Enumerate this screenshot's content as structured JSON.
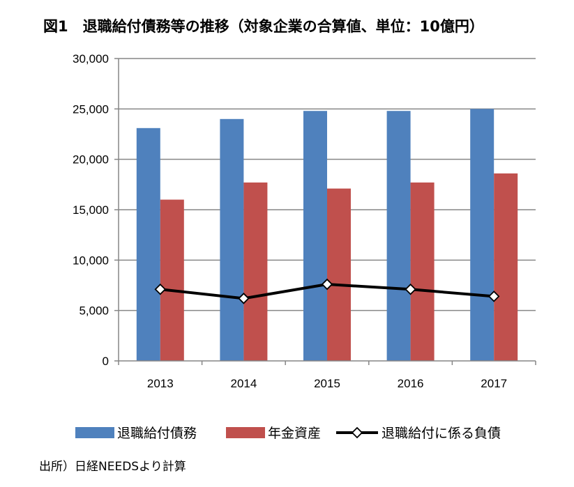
{
  "chart_data": {
    "type": "bar",
    "title": "図1　退職給付債務等の推移（対象企業の合算値、単位：10億円）",
    "categories": [
      "2013",
      "2014",
      "2015",
      "2016",
      "2017"
    ],
    "series": [
      {
        "name": "退職給付債務",
        "type": "bar",
        "color": "#4F81BD",
        "values": [
          23100,
          24000,
          24800,
          24800,
          25000
        ]
      },
      {
        "name": "年金資産",
        "type": "bar",
        "color": "#C0504D",
        "values": [
          16000,
          17700,
          17100,
          17700,
          18600
        ]
      },
      {
        "name": "退職給付に係る負債",
        "type": "line",
        "color": "#000000",
        "values": [
          7100,
          6200,
          7600,
          7100,
          6400
        ]
      }
    ],
    "ylim": [
      0,
      30000
    ],
    "yticks": [
      0,
      5000,
      10000,
      15000,
      20000,
      25000,
      30000
    ],
    "ytick_labels": [
      "0",
      "5,000",
      "10,000",
      "15,000",
      "20,000",
      "25,000",
      "30,000"
    ],
    "grid": true,
    "legend_position": "bottom"
  },
  "source": "出所）日経NEEDSより計算"
}
